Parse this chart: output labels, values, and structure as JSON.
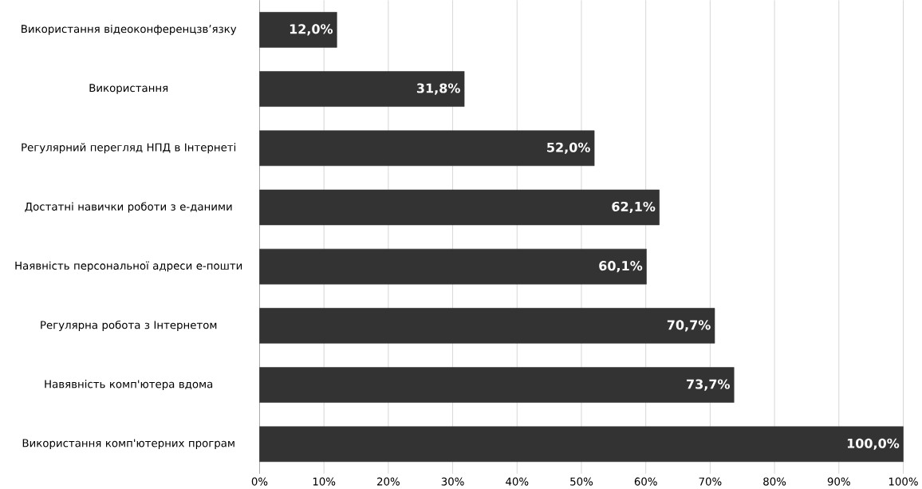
{
  "chart_data": {
    "type": "bar",
    "orientation": "horizontal",
    "categories": [
      "Використання відеоконференцзв’язку",
      "Використання",
      "Регулярний перегляд НПД в Інтернеті",
      "Достатні навички роботи з е-даними",
      "Наявність персональної адреси е-пошти",
      "Регулярна робота з Інтернетом",
      "Навявність комп'ютера вдома",
      "Використання комп'ютерних програм"
    ],
    "values": [
      12.0,
      31.8,
      52.0,
      62.1,
      60.1,
      70.7,
      73.7,
      100.0
    ],
    "value_labels": [
      "12,0%",
      "31,8%",
      "52,0%",
      "62,1%",
      "60,1%",
      "70,7%",
      "73,7%",
      "100,0%"
    ],
    "color": "#333333",
    "xlim": [
      0,
      100
    ],
    "xticks": [
      {
        "value": 0,
        "label": "0%"
      },
      {
        "value": 10,
        "label": "10%"
      },
      {
        "value": 20,
        "label": "20%"
      },
      {
        "value": 30,
        "label": "30%"
      },
      {
        "value": 40,
        "label": "40%"
      },
      {
        "value": 50,
        "label": "50%"
      },
      {
        "value": 60,
        "label": "60%"
      },
      {
        "value": 70,
        "label": "70%"
      },
      {
        "value": 80,
        "label": "80%"
      },
      {
        "value": 90,
        "label": "90%"
      },
      {
        "value": 100,
        "label": "100%"
      }
    ],
    "grid": "x"
  }
}
